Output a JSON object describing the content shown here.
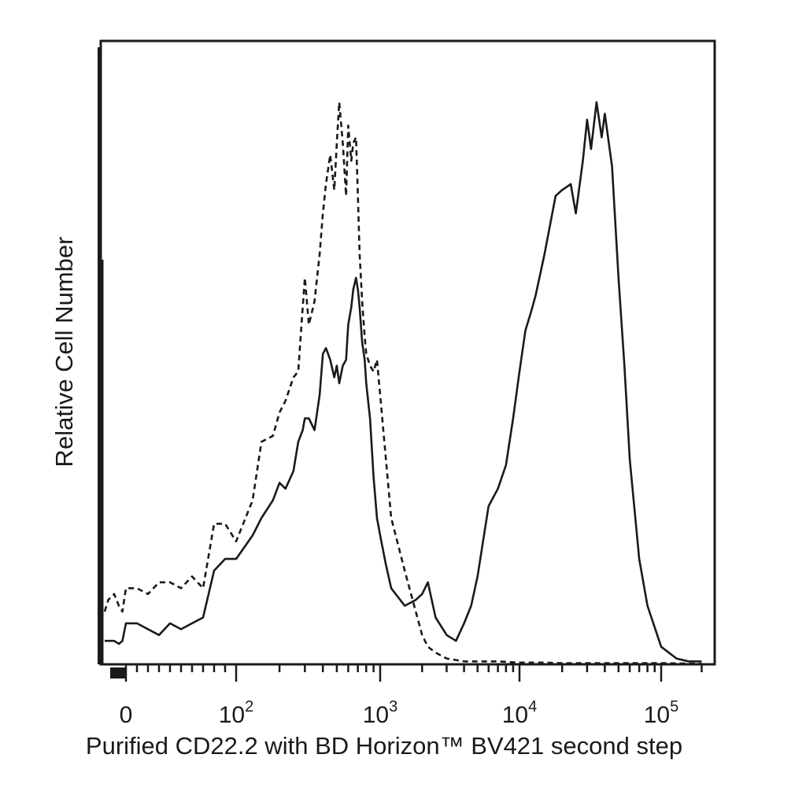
{
  "chart_data": {
    "type": "line",
    "title": "",
    "xlabel": "Purified CD22.2 with BD Horizon™ BV421 second step",
    "ylabel": "Relative Cell Number",
    "x_scale": "biexponential (linear near 0, log above ~10^2)",
    "xlim": [
      -200,
      250000
    ],
    "ylim": [
      0,
      100
    ],
    "grid": false,
    "legend": "none",
    "x_ticks": [
      {
        "value": 0,
        "base": "0",
        "exp": ""
      },
      {
        "value": 100,
        "base": "10",
        "exp": "2"
      },
      {
        "value": 1000,
        "base": "10",
        "exp": "3"
      },
      {
        "value": 10000,
        "base": "10",
        "exp": "4"
      },
      {
        "value": 100000,
        "base": "10",
        "exp": "5"
      }
    ],
    "series": [
      {
        "style": "dashed",
        "color": "#1a1a1a",
        "x": [
          -180,
          -150,
          -100,
          -60,
          -30,
          0,
          10,
          20,
          30,
          40,
          50,
          60,
          70,
          80,
          90,
          100,
          130,
          150,
          180,
          200,
          220,
          250,
          270,
          290,
          300,
          320,
          350,
          380,
          400,
          420,
          450,
          480,
          500,
          520,
          550,
          580,
          600,
          630,
          650,
          680,
          700,
          720,
          750,
          780,
          800,
          850,
          900,
          950,
          1000,
          1100,
          1200,
          1500,
          1800,
          2000,
          2200,
          2500,
          3000,
          4000,
          5000,
          7000,
          10000,
          15000,
          20000,
          50000,
          100000,
          200000
        ],
        "y": [
          9,
          11,
          12,
          10,
          9,
          13,
          13,
          12,
          14,
          14,
          13,
          15,
          13,
          24,
          24,
          21,
          28,
          38,
          39,
          43,
          45,
          49,
          50,
          61,
          66,
          58,
          62,
          70,
          77,
          82,
          87,
          81,
          89,
          96,
          89,
          80,
          92,
          86,
          89,
          90,
          80,
          70,
          62,
          56,
          53,
          51,
          50,
          52,
          46,
          35,
          25,
          16,
          9,
          5,
          3,
          2,
          1,
          0.5,
          0.5,
          0.5,
          0.3,
          0.3,
          0.2,
          0.2,
          0.2,
          0.1
        ]
      },
      {
        "style": "solid",
        "color": "#1a1a1a",
        "x": [
          -180,
          -150,
          -100,
          -60,
          -30,
          0,
          10,
          20,
          30,
          40,
          50,
          60,
          70,
          80,
          90,
          100,
          130,
          150,
          180,
          200,
          220,
          250,
          270,
          290,
          300,
          320,
          350,
          380,
          400,
          420,
          450,
          480,
          500,
          520,
          550,
          580,
          600,
          630,
          650,
          680,
          700,
          720,
          750,
          780,
          800,
          850,
          900,
          950,
          1000,
          1100,
          1200,
          1500,
          1800,
          2000,
          2200,
          2500,
          3000,
          3500,
          4000,
          4500,
          5000,
          6000,
          7000,
          8000,
          9000,
          10000,
          11000,
          12000,
          13000,
          15000,
          18000,
          20000,
          23000,
          25000,
          28000,
          30000,
          32000,
          35000,
          38000,
          40000,
          45000,
          50000,
          55000,
          60000,
          70000,
          80000,
          100000,
          130000,
          160000,
          200000
        ],
        "y": [
          4,
          4,
          4,
          3.5,
          4,
          7,
          7,
          6,
          5,
          7,
          6,
          7,
          8,
          16,
          18,
          18,
          22,
          25,
          28,
          31,
          30,
          33,
          38,
          40,
          42,
          42,
          40,
          46,
          53,
          54,
          52,
          49,
          51,
          48,
          51,
          52,
          58,
          61,
          64,
          66,
          64,
          61,
          55,
          52,
          48,
          42,
          32,
          25,
          22,
          17,
          13,
          10,
          11,
          12,
          14,
          8,
          5,
          4,
          7,
          10,
          15,
          27,
          30,
          34,
          42,
          50,
          57,
          60,
          63,
          70,
          80,
          81,
          82,
          77,
          86,
          93,
          88,
          96,
          90,
          94,
          85,
          66,
          51,
          35,
          18,
          10,
          3,
          1,
          0.5,
          0.5
        ]
      }
    ]
  }
}
